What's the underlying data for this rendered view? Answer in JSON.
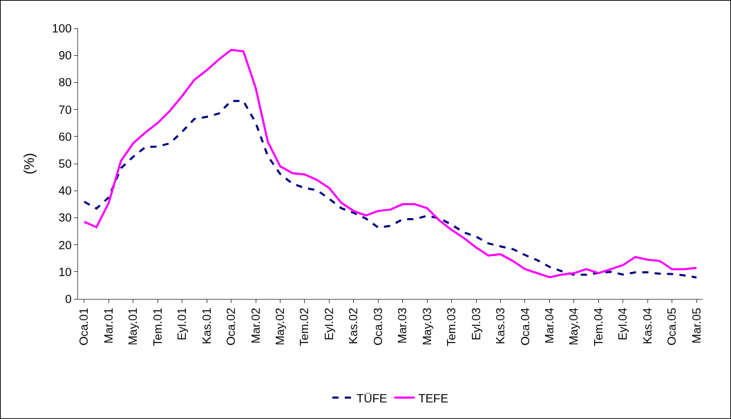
{
  "chart_data": {
    "type": "line",
    "ylabel": "(%)",
    "categories": [
      "Oca.01",
      null,
      "Mar.01",
      null,
      "May.01",
      null,
      "Tem.01",
      null,
      "Eyl.01",
      null,
      "Kas.01",
      null,
      "Oca.02",
      null,
      "Mar.02",
      null,
      "May.02",
      null,
      "Tem.02",
      null,
      "Eyl.02",
      null,
      "Kas.02",
      null,
      "Oca.03",
      null,
      "Mar.03",
      null,
      "May.03",
      null,
      "Tem.03",
      null,
      "Eyl.03",
      null,
      "Kas.03",
      null,
      "Oca.04",
      null,
      "Mar.04",
      null,
      "May.04",
      null,
      "Tem.04",
      null,
      "Eyl.04",
      null,
      "Kas.04",
      null,
      "Oca.05",
      null,
      "Mar.05"
    ],
    "series": [
      {
        "name": "TÜFE",
        "color": "#000080",
        "line_style": "dashed",
        "values": [
          35.9,
          33.4,
          37.5,
          48.3,
          52.5,
          56.1,
          56.3,
          57.5,
          61.8,
          66.5,
          67.3,
          68.5,
          73.2,
          73.1,
          65.1,
          52.7,
          46.2,
          42.6,
          41.0,
          40.2,
          37.0,
          33.5,
          31.8,
          29.7,
          26.4,
          27.0,
          29.4,
          29.5,
          30.7,
          29.8,
          27.4,
          24.6,
          23.0,
          20.5,
          19.4,
          18.4,
          16.2,
          14.3,
          11.8,
          10.2,
          8.9,
          8.9,
          9.6,
          10.0,
          9.0,
          9.8,
          9.8,
          9.3,
          9.2,
          8.7,
          7.9
        ]
      },
      {
        "name": "TEFE",
        "color": "#ff00ff",
        "line_style": "solid",
        "values": [
          28.5,
          26.5,
          35.5,
          51,
          57.5,
          61.5,
          65,
          69.5,
          75,
          81,
          84.5,
          88.5,
          92,
          91.5,
          78,
          58,
          49,
          46.5,
          46,
          44,
          41,
          35.5,
          32.5,
          30.8,
          32.5,
          33,
          35,
          35,
          33.5,
          29,
          25.5,
          22.5,
          19,
          16,
          16.5,
          14,
          11,
          9.5,
          8,
          9,
          9.5,
          11,
          9.5,
          11,
          12.5,
          15.5,
          14.5,
          14,
          11,
          11,
          11.5
        ]
      }
    ],
    "ylim": [
      0,
      100
    ],
    "yticks": [
      0,
      10,
      20,
      30,
      40,
      50,
      60,
      70,
      80,
      90,
      100
    ],
    "grid": false,
    "legend": "bottom",
    "marker": "none"
  }
}
